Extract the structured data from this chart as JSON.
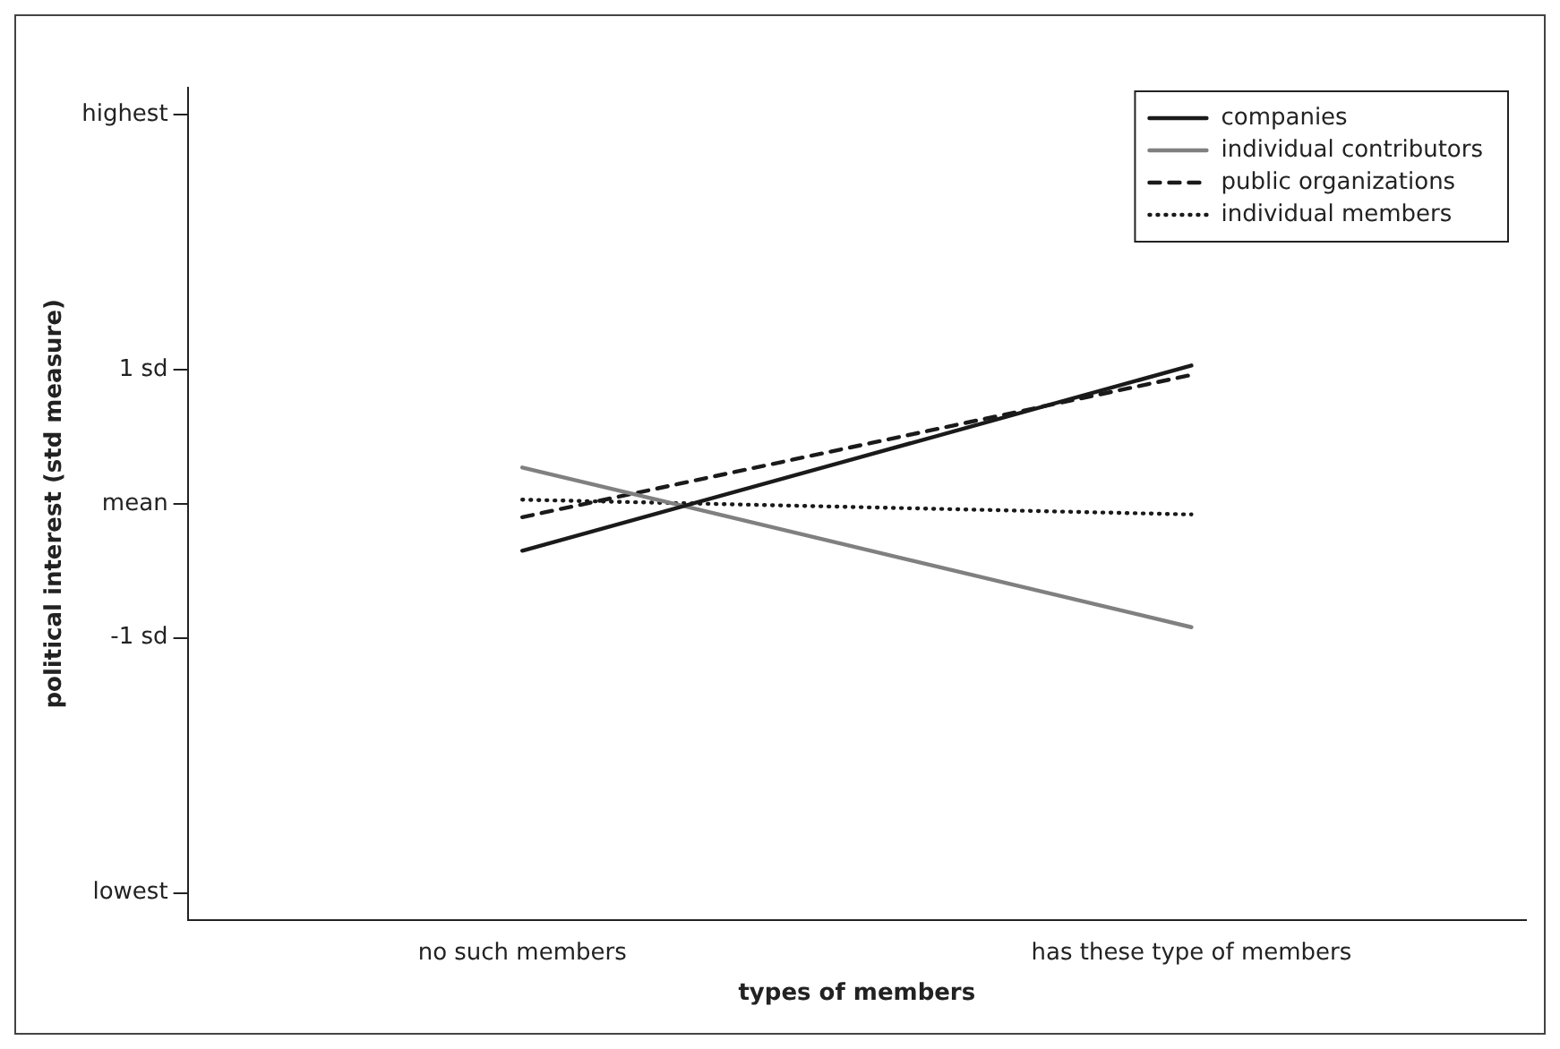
{
  "chart_data": {
    "type": "line",
    "xlabel": "types of members",
    "ylabel": "political interest (std measure)",
    "categories": [
      "no such members",
      "has these type of members"
    ],
    "series": [
      {
        "name": "companies",
        "color": "#1a1a1a",
        "values": [
          -0.35,
          1.03
        ],
        "line_style": "solid"
      },
      {
        "name": "individual contributors",
        "color": "#808080",
        "values": [
          0.27,
          -0.92
        ],
        "line_style": "solid"
      },
      {
        "name": "public organizations",
        "color": "#1a1a1a",
        "values": [
          -0.1,
          0.96
        ],
        "line_style": "dashed"
      },
      {
        "name": "individual members",
        "color": "#1a1a1a",
        "values": [
          0.03,
          -0.08
        ],
        "line_style": "dotted"
      }
    ],
    "ylim": [
      -3.1,
      3.1
    ],
    "yticks": [
      {
        "value": -2.9,
        "label": "lowest"
      },
      {
        "value": -1,
        "label": "-1 sd"
      },
      {
        "value": 0,
        "label": "mean"
      },
      {
        "value": 1,
        "label": "1 sd"
      },
      {
        "value": 2.9,
        "label": "highest"
      }
    ],
    "legend": "top right"
  }
}
